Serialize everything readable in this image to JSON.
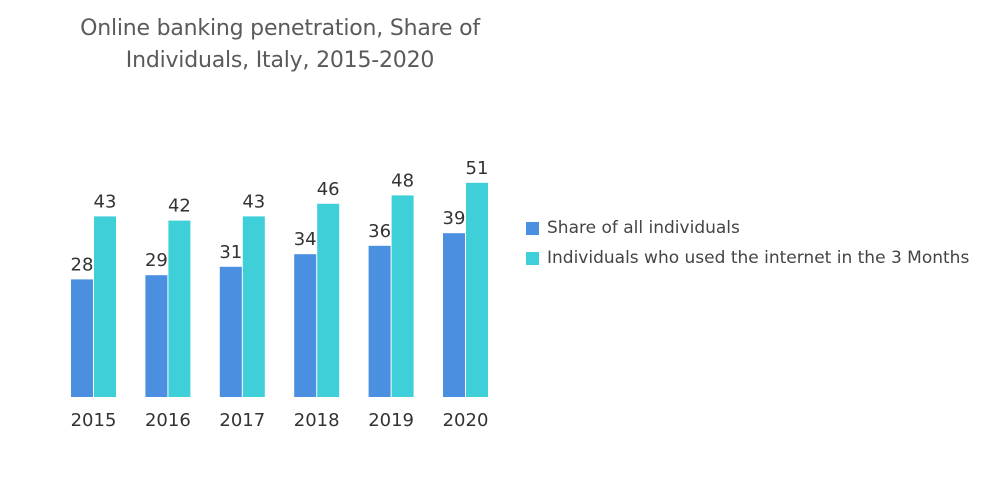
{
  "chart_data": {
    "type": "bar",
    "title_lines": [
      "Online banking penetration, Share of",
      "Individuals, Italy, 2015-2020"
    ],
    "categories": [
      "2015",
      "2016",
      "2017",
      "2018",
      "2019",
      "2020"
    ],
    "series": [
      {
        "name": "Share of all individuals",
        "color": "#4a8fe0",
        "values": [
          28,
          29,
          31,
          34,
          36,
          39
        ]
      },
      {
        "name": "Individuals who used the internet in the 3 Months",
        "color": "#3ecfd8",
        "values": [
          43,
          42,
          43,
          46,
          48,
          51
        ]
      }
    ],
    "xlabel": "",
    "ylabel": "",
    "ylim": [
      0,
      51
    ],
    "grid": false,
    "legend_position": "right"
  }
}
